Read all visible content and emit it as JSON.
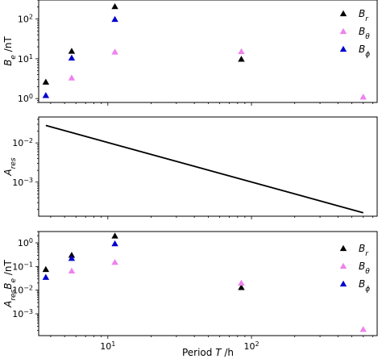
{
  "colors": {
    "Br": "#000000",
    "Btheta": "#ee82ee",
    "Bphi": "#0000cd",
    "line": "#000000"
  },
  "chart_data": [
    {
      "type": "scatter",
      "ylabel": "B_e /nT",
      "ylabel_text": {
        "main": "B",
        "sub": "e",
        "tail": " /nT"
      },
      "xscale": "log",
      "yscale": "log",
      "xlim": [
        3.3,
        750
      ],
      "ylim": [
        0.8,
        300
      ],
      "yticks": [
        {
          "value": 1,
          "label": "10",
          "exp": "0"
        },
        {
          "value": 10,
          "label": "10",
          "exp": "1"
        },
        {
          "value": 100,
          "label": "10",
          "exp": "2"
        }
      ],
      "legend_position": "top-right",
      "series": [
        {
          "name": "B_r",
          "label": {
            "main": "B",
            "sub": "r"
          },
          "color_key": "Br",
          "x": [
            3.7,
            5.6,
            11.2,
            85
          ],
          "y": [
            2.6,
            15.5,
            205,
            9.8
          ]
        },
        {
          "name": "B_theta",
          "label": {
            "main": "B",
            "sub": "θ"
          },
          "color_key": "Btheta",
          "x": [
            5.6,
            11.2,
            85,
            600
          ],
          "y": [
            3.3,
            14.8,
            15.2,
            1.1
          ]
        },
        {
          "name": "B_phi",
          "label": {
            "main": "B",
            "sub": "ϕ"
          },
          "color_key": "Bphi",
          "x": [
            3.7,
            5.6,
            11.2
          ],
          "y": [
            1.2,
            10.5,
            98
          ]
        }
      ]
    },
    {
      "type": "line",
      "ylabel": "A_res",
      "ylabel_text": {
        "main": "A",
        "sub": "res",
        "tail": ""
      },
      "xscale": "log",
      "yscale": "log",
      "xlim": [
        3.3,
        750
      ],
      "ylim": [
        0.000135,
        0.046
      ],
      "yticks": [
        {
          "value": 0.001,
          "label": "10",
          "exp": "−3"
        },
        {
          "value": 0.01,
          "label": "10",
          "exp": "−2"
        }
      ],
      "series": [
        {
          "color_key": "line",
          "x": [
            3.7,
            600
          ],
          "y": [
            0.028,
            0.000165
          ]
        }
      ]
    },
    {
      "type": "scatter",
      "ylabel": "A_res B_e /nT",
      "ylabel_text": {
        "main": "A",
        "sub": "res",
        "main2": "B",
        "sub2": "e",
        "tail": " /nT"
      },
      "xlabel": "Period T /h",
      "xlabel_text": {
        "pre": "Period ",
        "var": "T",
        "tail": " /h"
      },
      "xscale": "log",
      "yscale": "log",
      "xlim": [
        3.3,
        750
      ],
      "ylim": [
        0.00012,
        3.0
      ],
      "xticks": [
        {
          "value": 10,
          "label": "10",
          "exp": "1"
        },
        {
          "value": 100,
          "label": "10",
          "exp": "2"
        }
      ],
      "yticks": [
        {
          "value": 0.001,
          "label": "10",
          "exp": "−3"
        },
        {
          "value": 0.01,
          "label": "10",
          "exp": "−2"
        },
        {
          "value": 0.1,
          "label": "10",
          "exp": "−1"
        },
        {
          "value": 1,
          "label": "10",
          "exp": "0"
        }
      ],
      "legend_position": "right",
      "series": [
        {
          "name": "B_r",
          "label": {
            "main": "B",
            "sub": "r"
          },
          "color_key": "Br",
          "x": [
            3.7,
            5.6,
            11.2,
            85
          ],
          "y": [
            0.075,
            0.3,
            1.95,
            0.013
          ]
        },
        {
          "name": "B_theta",
          "label": {
            "main": "B",
            "sub": "θ"
          },
          "color_key": "Btheta",
          "x": [
            5.6,
            11.2,
            85,
            600
          ],
          "y": [
            0.065,
            0.15,
            0.02,
            0.00022
          ]
        },
        {
          "name": "B_phi",
          "label": {
            "main": "B",
            "sub": "ϕ"
          },
          "color_key": "Bphi",
          "x": [
            3.7,
            5.6,
            11.2
          ],
          "y": [
            0.035,
            0.22,
            0.92
          ]
        }
      ]
    }
  ]
}
